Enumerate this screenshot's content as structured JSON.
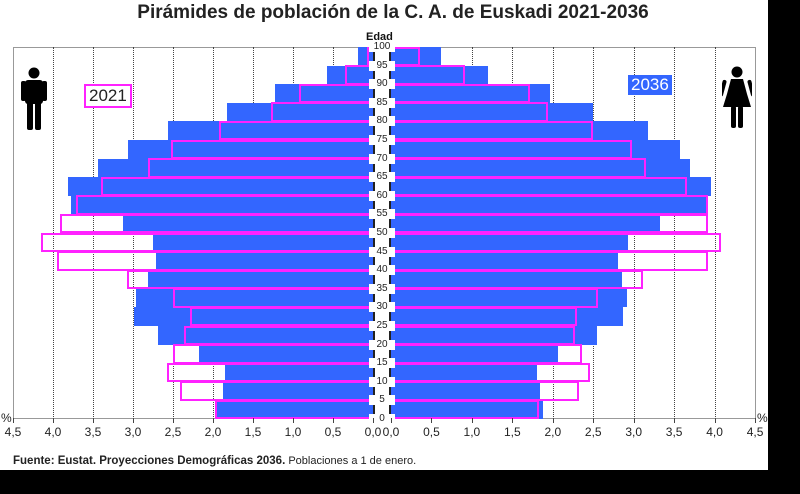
{
  "chart_data": {
    "type": "bar",
    "subtype": "population-pyramid",
    "title": "Pirámides de población de la C. A. de Euskadi 2021-2036",
    "ylabel": "Edad",
    "xlabel": "%",
    "xlim": [
      0,
      4.5
    ],
    "x_ticks_left": [
      "4,5",
      "4,0",
      "3,5",
      "3,0",
      "2,5",
      "2,0",
      "1,5",
      "1,0",
      "0,5",
      "0,0"
    ],
    "x_ticks_right": [
      "0,0",
      "0,5",
      "1,0",
      "1,5",
      "2,0",
      "2,5",
      "3,0",
      "3,5",
      "4,0",
      "4,5"
    ],
    "age_ticks": [
      "100",
      "95",
      "90",
      "85",
      "80",
      "75",
      "70",
      "65",
      "60",
      "55",
      "50",
      "45",
      "40",
      "35",
      "30",
      "25",
      "20",
      "15",
      "10",
      "5",
      "0"
    ],
    "categories": [
      "95-99",
      "90-94",
      "85-89",
      "80-84",
      "75-79",
      "70-74",
      "65-69",
      "60-64",
      "55-59",
      "50-54",
      "45-49",
      "40-44",
      "35-39",
      "30-34",
      "25-29",
      "20-24",
      "15-19",
      "10-14",
      "5-9",
      "0-4"
    ],
    "grid": "vertical dotted",
    "legend": [
      {
        "label": "2021",
        "style": "magenta outline",
        "color": "#ff22ff"
      },
      {
        "label": "2036",
        "style": "blue fill",
        "color": "#3366ff"
      }
    ],
    "series": [
      {
        "name": "Hombres 2036",
        "side": "left",
        "values": [
          0.19,
          0.58,
          1.23,
          1.83,
          2.56,
          3.06,
          3.44,
          3.81,
          3.78,
          3.13,
          2.75,
          2.71,
          2.81,
          2.96,
          2.99,
          2.69,
          2.18,
          1.85,
          1.88,
          1.95
        ]
      },
      {
        "name": "Hombres 2021",
        "side": "left",
        "values": [
          0.08,
          0.35,
          0.93,
          1.28,
          1.93,
          2.53,
          2.81,
          3.4,
          3.71,
          3.91,
          4.15,
          3.95,
          3.08,
          2.5,
          2.29,
          2.36,
          2.5,
          2.58,
          2.41,
          1.98
        ]
      },
      {
        "name": "Mujeres 2036",
        "side": "right",
        "values": [
          0.62,
          1.2,
          1.97,
          2.5,
          3.18,
          3.57,
          3.7,
          3.96,
          3.92,
          3.33,
          2.93,
          2.81,
          2.86,
          2.92,
          2.87,
          2.55,
          2.06,
          1.8,
          1.84,
          1.88
        ]
      },
      {
        "name": "Mujeres 2021",
        "side": "right",
        "values": [
          0.36,
          0.91,
          1.72,
          1.94,
          2.5,
          2.98,
          3.15,
          3.66,
          3.92,
          3.92,
          4.08,
          3.92,
          3.11,
          2.56,
          2.3,
          2.27,
          2.36,
          2.46,
          2.32,
          1.83
        ]
      }
    ]
  },
  "labels": {
    "title": "Pirámides de población de la C. A. de Euskadi 2021-2036",
    "age_axis": "Edad",
    "pct_left": "%",
    "pct_right": "%",
    "year_2021": "2021",
    "year_2036": "2036",
    "source_bold": "Fuente: Eustat. Proyecciones Demográficas 2036.",
    "source_rest": " Poblaciones a 1 de enero."
  },
  "icons": {
    "left": "man-icon",
    "right": "woman-icon"
  },
  "colors": {
    "blue": "#3366ff",
    "magenta": "#ff22ff"
  }
}
